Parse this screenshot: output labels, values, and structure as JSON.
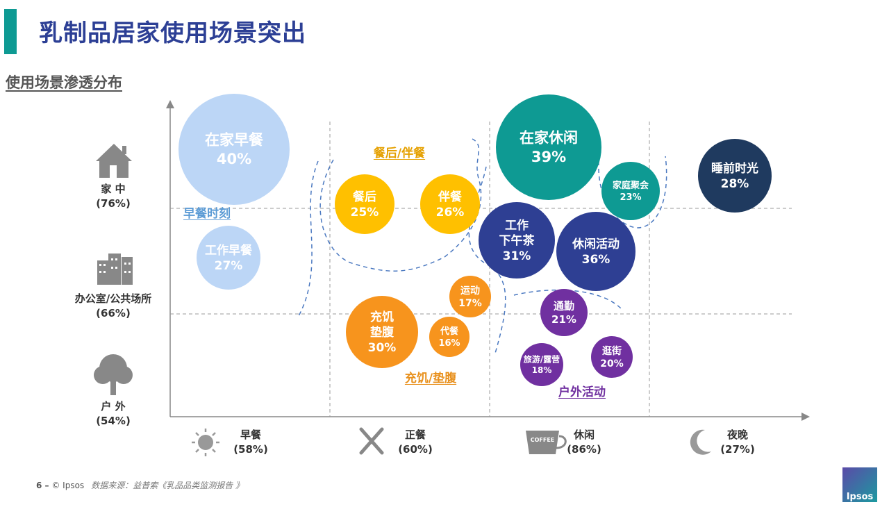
{
  "header": {
    "title": "乳制品居家使用场景突出",
    "subtitle": "使用场景渗透分布"
  },
  "footer": {
    "page": "6 –",
    "copyright": "© Ipsos",
    "source": "数据来源：益普索《乳品品类监测报告 》",
    "logo": "Ipsos"
  },
  "chart_data": {
    "type": "scatter",
    "title": "使用场景渗透分布",
    "y_categories": [
      {
        "label": "家 中",
        "value": "(76%)",
        "icon": "house-icon"
      },
      {
        "label": "办公室/公共场所",
        "value": "(66%)",
        "icon": "office-building-icon"
      },
      {
        "label": "户 外",
        "value": "(54%)",
        "icon": "tree-icon"
      }
    ],
    "x_categories": [
      {
        "label": "早餐",
        "value": "(58%)",
        "icon": "sun-icon"
      },
      {
        "label": "正餐",
        "value": "(60%)",
        "icon": "fork-knife-icon"
      },
      {
        "label": "休闲",
        "value": "(86%)",
        "icon": "coffee-cup-icon",
        "icon_text": "COFFEE"
      },
      {
        "label": "夜晚",
        "value": "(27%)",
        "icon": "moon-icon"
      }
    ],
    "groups": [
      {
        "label": "早餐时刻",
        "color": "#5b9bd5"
      },
      {
        "label": "餐后/伴餐",
        "color": "#e5a000"
      },
      {
        "label": "充饥/垫腹",
        "color": "#e8901c"
      },
      {
        "label": "户外活动",
        "color": "#7030a0"
      }
    ],
    "bubbles": [
      {
        "name": "在家早餐",
        "value": "40%",
        "x": "早餐",
        "y": "家 中",
        "color": "#bcd6f6"
      },
      {
        "name": "工作早餐",
        "value": "27%",
        "x": "早餐",
        "y": "办公室/公共场所",
        "color": "#bcd6f6"
      },
      {
        "name": "餐后",
        "value": "25%",
        "x": "正餐",
        "y": "家 中",
        "color": "#ffc000"
      },
      {
        "name": "伴餐",
        "value": "26%",
        "x": "正餐",
        "y": "家 中",
        "color": "#ffc000"
      },
      {
        "name": "在家休闲",
        "value": "39%",
        "x": "休闲",
        "y": "家 中",
        "color": "#0e9a93"
      },
      {
        "name": "家庭聚会",
        "value": "23%",
        "x": "休闲",
        "y": "家 中",
        "color": "#0e9a93"
      },
      {
        "name": "睡前时光",
        "value": "28%",
        "x": "夜晚",
        "y": "家 中",
        "color": "#1f3a5f"
      },
      {
        "name": "工作下午茶",
        "value": "31%",
        "x": "休闲",
        "y": "办公室/公共场所",
        "color": "#2e3f93"
      },
      {
        "name": "休闲活动",
        "value": "36%",
        "x": "休闲",
        "y": "办公室/公共场所",
        "color": "#2e3f93"
      },
      {
        "name": "运动",
        "value": "17%",
        "x": "正餐",
        "y": "办公室/公共场所",
        "color": "#f7941d"
      },
      {
        "name": "充饥垫腹",
        "value": "30%",
        "x": "正餐",
        "y": "户 外",
        "color": "#f7941d"
      },
      {
        "name": "代餐",
        "value": "16%",
        "x": "正餐",
        "y": "户 外",
        "color": "#f7941d"
      },
      {
        "name": "通勤",
        "value": "21%",
        "x": "休闲",
        "y": "户 外",
        "color": "#7030a0"
      },
      {
        "name": "旅游/露营",
        "value": "18%",
        "x": "休闲",
        "y": "户 外",
        "color": "#7030a0"
      },
      {
        "name": "逛街",
        "value": "20%",
        "x": "休闲",
        "y": "户 外",
        "color": "#7030a0"
      }
    ]
  }
}
